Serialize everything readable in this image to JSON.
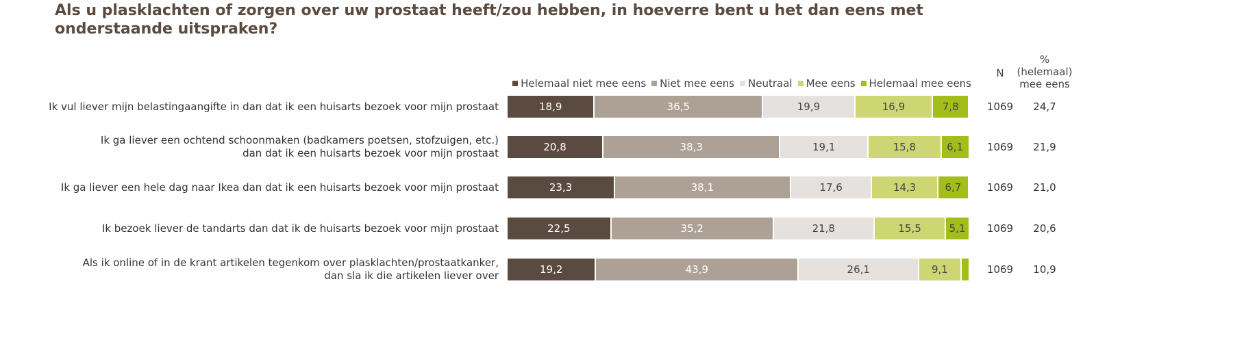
{
  "title": "Als u plasklachten of zorgen over uw prostaat heeft/zou hebben, in hoeverre bent u het dan eens met onderstaande uitspraken?",
  "headers": {
    "n": "N",
    "pct": "% (helemaal) mee eens"
  },
  "chart_data": {
    "type": "bar",
    "orientation": "horizontal-stacked-100",
    "categories": [
      "Ik vul liever mijn belastingaangifte in dan dat ik een huisarts bezoek voor mijn prostaat",
      "Ik ga liever een ochtend schoonmaken (badkamers poetsen, stofzuigen, etc.) dan dat ik een huisarts bezoek voor mijn prostaat",
      "Ik ga liever een hele dag naar Ikea dan dat ik een huisarts bezoek voor mijn prostaat",
      "Ik bezoek liever de tandarts dan dat ik de huisarts bezoek voor mijn prostaat",
      "Als ik online of in de krant artikelen tegenkom over plasklachten/prostaatkanker, dan sla ik die artikelen liever over"
    ],
    "category_lines": [
      [
        "Ik vul liever mijn belastingaangifte in dan dat ik een huisarts bezoek voor mijn prostaat"
      ],
      [
        "Ik ga liever een ochtend schoonmaken (badkamers poetsen, stofzuigen, etc.)",
        "dan dat ik een huisarts bezoek voor mijn prostaat"
      ],
      [
        "Ik ga liever een hele dag naar Ikea dan dat ik een huisarts bezoek voor mijn prostaat"
      ],
      [
        "Ik bezoek liever de tandarts dan dat ik de huisarts bezoek voor mijn prostaat"
      ],
      [
        "Als ik online of in de krant artikelen tegenkom over plasklachten/prostaatkanker,",
        "dan sla ik die artikelen liever over"
      ]
    ],
    "series": [
      {
        "name": "Helemaal niet mee eens",
        "color": "#5a4a3f",
        "text_color": "#ffffff",
        "values": [
          18.9,
          20.8,
          23.3,
          22.5,
          19.2
        ]
      },
      {
        "name": "Niet mee eens",
        "color": "#ada195",
        "text_color": "#ffffff",
        "values": [
          36.5,
          38.3,
          38.1,
          35.2,
          43.9
        ]
      },
      {
        "name": "Neutraal",
        "color": "#e4e1df",
        "text_color": "#444444",
        "values": [
          19.9,
          19.1,
          17.6,
          21.8,
          26.1
        ]
      },
      {
        "name": "Mee eens",
        "color": "#cdd672",
        "text_color": "#444444",
        "values": [
          16.9,
          15.8,
          14.3,
          15.5,
          9.1
        ]
      },
      {
        "name": "Helemaal mee eens",
        "color": "#a3bd1a",
        "text_color": "#444444",
        "values": [
          7.8,
          6.1,
          6.7,
          5.1,
          1.8
        ],
        "labels_shown": [
          true,
          true,
          true,
          true,
          false
        ]
      }
    ],
    "n": [
      1069,
      1069,
      1069,
      1069,
      1069
    ],
    "pct_agree": [
      "24,7",
      "21,9",
      "21,0",
      "20,6",
      "10,9"
    ],
    "xlim": [
      0,
      100
    ],
    "legend": "top",
    "decimal_separator": ","
  }
}
